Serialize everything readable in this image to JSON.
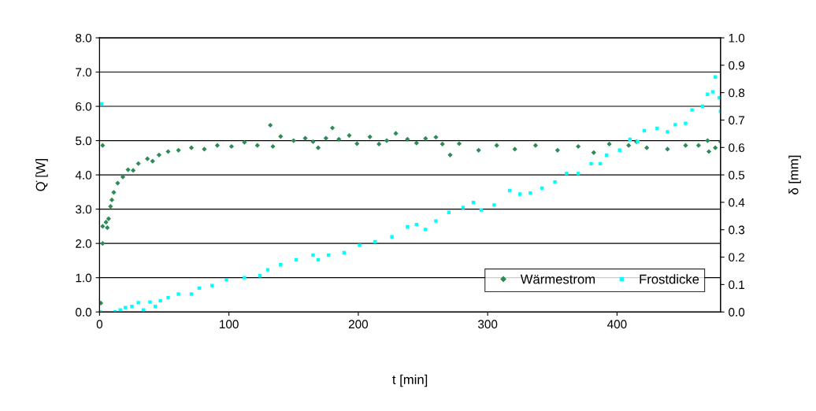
{
  "chart_data": {
    "type": "scatter",
    "xlabel": "t [min]",
    "ylabel": "Q̇ [W]",
    "y2label": "δ [mm]",
    "xlim": [
      0,
      480
    ],
    "xticks": [
      0,
      100,
      200,
      300,
      400
    ],
    "ylim": [
      0,
      8
    ],
    "yticks": [
      {
        "value": 0,
        "label": "0.0"
      },
      {
        "value": 1,
        "label": "1.0"
      },
      {
        "value": 2,
        "label": "2.0"
      },
      {
        "value": 3,
        "label": "3.0"
      },
      {
        "value": 4,
        "label": "4.0"
      },
      {
        "value": 5,
        "label": "5.0"
      },
      {
        "value": 6,
        "label": "6.0"
      },
      {
        "value": 7,
        "label": "7.0"
      },
      {
        "value": 8,
        "label": "8.0"
      }
    ],
    "y2lim": [
      0,
      1
    ],
    "y2ticks": [
      {
        "value": 0,
        "label": "0.0"
      },
      0.1,
      0.2,
      0.3,
      0.4,
      0.5,
      0.6,
      0.7,
      0.8,
      0.9,
      {
        "value": 1,
        "label": "1.0"
      }
    ],
    "grid": "y",
    "legend": "bottom right",
    "series": [
      {
        "name": "Wärmestrom",
        "color": "#2e8b57",
        "marker": "diamond",
        "x": [
          1,
          2.4,
          2.4,
          2.4,
          5,
          6,
          7,
          8.5,
          9.5,
          11,
          14,
          18,
          22,
          26,
          30,
          37,
          41,
          46,
          53,
          61,
          71,
          81,
          91,
          102,
          112,
          122,
          132,
          134,
          140,
          150,
          159,
          165,
          169,
          175,
          180,
          185,
          193,
          199,
          209,
          216,
          222,
          229,
          238,
          245,
          252,
          260,
          265,
          271,
          278,
          293,
          307,
          321,
          337,
          354,
          370,
          382,
          394,
          409,
          415,
          423,
          439,
          453,
          463,
          470,
          471,
          476,
          480
        ],
        "values": [
          0.26,
          4.86,
          2.0,
          2.5,
          2.62,
          2.46,
          2.72,
          3.08,
          3.27,
          3.49,
          3.76,
          3.94,
          4.15,
          4.13,
          4.33,
          4.47,
          4.4,
          4.58,
          4.68,
          4.72,
          4.79,
          4.75,
          4.86,
          4.83,
          4.95,
          4.86,
          5.45,
          4.83,
          5.12,
          5.0,
          5.07,
          4.97,
          4.79,
          5.07,
          5.37,
          5.04,
          5.15,
          4.91,
          5.11,
          4.9,
          5.0,
          5.21,
          5.04,
          4.93,
          5.06,
          5.1,
          4.9,
          4.58,
          4.91,
          4.72,
          4.86,
          4.75,
          4.86,
          4.72,
          4.83,
          4.65,
          4.9,
          4.86,
          4.97,
          4.79,
          4.75,
          4.86,
          4.86,
          5.0,
          4.68,
          4.79,
          4.97
        ]
      },
      {
        "name": "Frostdicke",
        "color": "#00ffff",
        "marker": "square",
        "axis": "y2",
        "x": [
          0.4,
          1.6,
          12,
          16,
          20,
          25,
          30,
          34,
          39,
          43,
          47,
          53,
          61,
          71,
          77,
          87,
          98,
          112,
          124,
          130,
          140,
          152,
          165,
          169,
          177,
          189,
          201,
          213,
          226,
          238,
          245,
          252,
          260,
          270,
          281,
          289,
          295,
          305,
          317,
          325,
          333,
          342,
          352,
          361,
          370,
          380,
          387,
          392,
          402,
          410,
          416,
          421,
          431,
          439,
          445,
          453,
          458,
          466,
          470,
          474,
          476,
          479,
          480
        ],
        "values": [
          0.0,
          0.759,
          0.0,
          0.007,
          0.016,
          0.02,
          0.034,
          0.007,
          0.036,
          0.02,
          0.041,
          0.052,
          0.065,
          0.065,
          0.087,
          0.096,
          0.118,
          0.125,
          0.132,
          0.154,
          0.172,
          0.19,
          0.207,
          0.19,
          0.207,
          0.216,
          0.243,
          0.256,
          0.274,
          0.31,
          0.319,
          0.301,
          0.332,
          0.363,
          0.381,
          0.399,
          0.372,
          0.39,
          0.443,
          0.43,
          0.434,
          0.452,
          0.474,
          0.505,
          0.505,
          0.541,
          0.541,
          0.572,
          0.59,
          0.63,
          0.621,
          0.661,
          0.67,
          0.657,
          0.683,
          0.688,
          0.737,
          0.75,
          0.794,
          0.803,
          0.857,
          0.781,
          0.732
        ]
      }
    ]
  }
}
